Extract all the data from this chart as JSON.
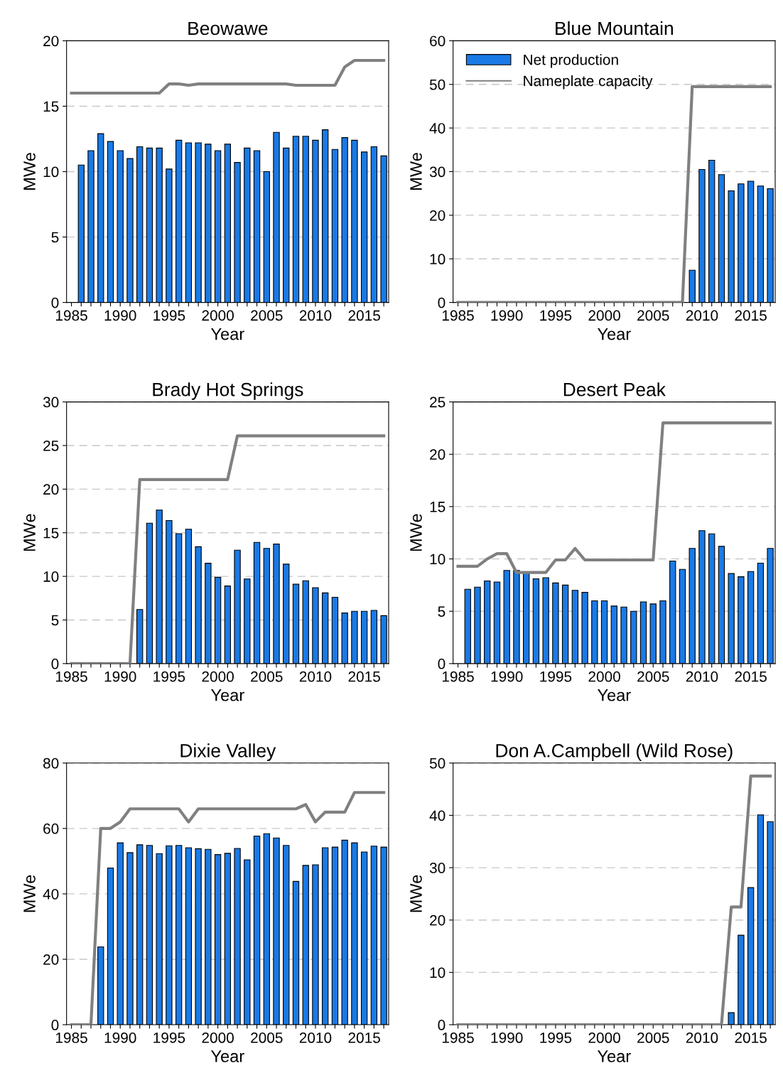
{
  "chart_data": [
    {
      "type": "bar",
      "title": "Beowawe",
      "xlabel": "Year",
      "ylabel": "MWe",
      "xlim": [
        1984.5,
        2017.5
      ],
      "ylim": [
        0,
        20
      ],
      "yticks": [
        0,
        5,
        10,
        15,
        20
      ],
      "grid": "y",
      "xticks": [
        1985,
        {
          "value": 1986,
          "label": null
        },
        {
          "value": 1987,
          "label": null
        },
        {
          "value": 1988,
          "label": null
        },
        {
          "value": 1989,
          "label": null
        },
        1990,
        {
          "value": 1991,
          "label": null
        },
        {
          "value": 1992,
          "label": null
        },
        {
          "value": 1993,
          "label": null
        },
        {
          "value": 1994,
          "label": null
        },
        1995,
        {
          "value": 1996,
          "label": null
        },
        {
          "value": 1997,
          "label": null
        },
        {
          "value": 1998,
          "label": null
        },
        {
          "value": 1999,
          "label": null
        },
        2000,
        {
          "value": 2001,
          "label": null
        },
        {
          "value": 2002,
          "label": null
        },
        {
          "value": 2003,
          "label": null
        },
        {
          "value": 2004,
          "label": null
        },
        2005,
        {
          "value": 2006,
          "label": null
        },
        {
          "value": 2007,
          "label": null
        },
        {
          "value": 2008,
          "label": null
        },
        {
          "value": 2009,
          "label": null
        },
        2010,
        {
          "value": 2011,
          "label": null
        },
        {
          "value": 2012,
          "label": null
        },
        {
          "value": 2013,
          "label": null
        },
        {
          "value": 2014,
          "label": null
        },
        2015,
        {
          "value": 2016,
          "label": null
        },
        {
          "value": 2017,
          "label": null
        }
      ],
      "series": [
        {
          "color": "#1a7ae6",
          "x": [
            1986,
            1987,
            1988,
            1989,
            1990,
            1991,
            1992,
            1993,
            1994,
            1995,
            1996,
            1997,
            1998,
            1999,
            2000,
            2001,
            2002,
            2003,
            2004,
            2005,
            2006,
            2007,
            2008,
            2009,
            2010,
            2011,
            2012,
            2013,
            2014,
            2015,
            2016,
            2017
          ],
          "values": [
            10.5,
            11.6,
            12.9,
            12.3,
            11.6,
            11.0,
            11.9,
            11.8,
            11.8,
            10.2,
            12.4,
            12.2,
            12.2,
            12.1,
            11.6,
            12.1,
            10.7,
            11.8,
            11.6,
            10.0,
            13.0,
            11.8,
            12.7,
            12.7,
            12.4,
            13.2,
            11.7,
            12.6,
            12.4,
            11.5,
            11.9,
            11.2
          ]
        },
        {
          "type": "line",
          "color": "#808080",
          "x": [
            1985,
            1994,
            1995,
            1996,
            1997,
            1998,
            2007,
            2008,
            2012,
            2013,
            2014,
            2017
          ],
          "values": [
            16.0,
            16.0,
            16.7,
            16.7,
            16.6,
            16.7,
            16.7,
            16.6,
            16.6,
            18.0,
            18.5,
            18.5
          ]
        }
      ]
    },
    {
      "type": "bar",
      "title": "Blue Mountain",
      "xlabel": "Year",
      "ylabel": "MWe",
      "xlim": [
        1984.5,
        2017.5
      ],
      "ylim": [
        0,
        60
      ],
      "yticks": [
        0,
        10,
        20,
        30,
        40,
        50,
        60
      ],
      "grid": "y",
      "legend": "top left",
      "xticks": [
        1985,
        {
          "value": 1986,
          "label": null
        },
        {
          "value": 1987,
          "label": null
        },
        {
          "value": 1988,
          "label": null
        },
        {
          "value": 1989,
          "label": null
        },
        1990,
        {
          "value": 1991,
          "label": null
        },
        {
          "value": 1992,
          "label": null
        },
        {
          "value": 1993,
          "label": null
        },
        {
          "value": 1994,
          "label": null
        },
        1995,
        {
          "value": 1996,
          "label": null
        },
        {
          "value": 1997,
          "label": null
        },
        {
          "value": 1998,
          "label": null
        },
        {
          "value": 1999,
          "label": null
        },
        2000,
        {
          "value": 2001,
          "label": null
        },
        {
          "value": 2002,
          "label": null
        },
        {
          "value": 2003,
          "label": null
        },
        {
          "value": 2004,
          "label": null
        },
        2005,
        {
          "value": 2006,
          "label": null
        },
        {
          "value": 2007,
          "label": null
        },
        {
          "value": 2008,
          "label": null
        },
        {
          "value": 2009,
          "label": null
        },
        2010,
        {
          "value": 2011,
          "label": null
        },
        {
          "value": 2012,
          "label": null
        },
        {
          "value": 2013,
          "label": null
        },
        {
          "value": 2014,
          "label": null
        },
        2015,
        {
          "value": 2016,
          "label": null
        },
        {
          "value": 2017,
          "label": null
        }
      ],
      "series": [
        {
          "name": "Net production",
          "color": "#1a7ae6",
          "x": [
            2009,
            2010,
            2011,
            2012,
            2013,
            2014,
            2015,
            2016,
            2017
          ],
          "values": [
            7.4,
            30.5,
            32.6,
            29.3,
            25.6,
            27.2,
            27.8,
            26.7,
            26.1
          ]
        },
        {
          "name": "Nameplate capacity",
          "type": "line",
          "color": "#808080",
          "x": [
            1985,
            2008,
            2009,
            2017
          ],
          "values": [
            0,
            0,
            49.5,
            49.5
          ]
        }
      ]
    },
    {
      "type": "bar",
      "title": "Brady Hot Springs",
      "xlabel": "Year",
      "ylabel": "MWe",
      "xlim": [
        1984.5,
        2017.5
      ],
      "ylim": [
        0,
        30
      ],
      "yticks": [
        0,
        5,
        10,
        15,
        20,
        25,
        30
      ],
      "grid": "y",
      "xticks": [
        1985,
        {
          "value": 1986,
          "label": null
        },
        {
          "value": 1987,
          "label": null
        },
        {
          "value": 1988,
          "label": null
        },
        {
          "value": 1989,
          "label": null
        },
        1990,
        {
          "value": 1991,
          "label": null
        },
        {
          "value": 1992,
          "label": null
        },
        {
          "value": 1993,
          "label": null
        },
        {
          "value": 1994,
          "label": null
        },
        1995,
        {
          "value": 1996,
          "label": null
        },
        {
          "value": 1997,
          "label": null
        },
        {
          "value": 1998,
          "label": null
        },
        {
          "value": 1999,
          "label": null
        },
        2000,
        {
          "value": 2001,
          "label": null
        },
        {
          "value": 2002,
          "label": null
        },
        {
          "value": 2003,
          "label": null
        },
        {
          "value": 2004,
          "label": null
        },
        2005,
        {
          "value": 2006,
          "label": null
        },
        {
          "value": 2007,
          "label": null
        },
        {
          "value": 2008,
          "label": null
        },
        {
          "value": 2009,
          "label": null
        },
        2010,
        {
          "value": 2011,
          "label": null
        },
        {
          "value": 2012,
          "label": null
        },
        {
          "value": 2013,
          "label": null
        },
        {
          "value": 2014,
          "label": null
        },
        2015,
        {
          "value": 2016,
          "label": null
        },
        {
          "value": 2017,
          "label": null
        }
      ],
      "series": [
        {
          "color": "#1a7ae6",
          "x": [
            1992,
            1993,
            1994,
            1995,
            1996,
            1997,
            1998,
            1999,
            2000,
            2001,
            2002,
            2003,
            2004,
            2005,
            2006,
            2007,
            2008,
            2009,
            2010,
            2011,
            2012,
            2013,
            2014,
            2015,
            2016,
            2017
          ],
          "values": [
            6.2,
            16.1,
            17.6,
            16.4,
            14.9,
            15.4,
            13.4,
            11.5,
            9.9,
            8.9,
            13.0,
            9.7,
            13.9,
            13.2,
            13.7,
            11.4,
            9.1,
            9.5,
            8.7,
            8.1,
            7.6,
            5.8,
            6.0,
            6.0,
            6.1,
            5.5
          ]
        },
        {
          "type": "line",
          "color": "#808080",
          "x": [
            1985,
            1991,
            1992,
            2001,
            2002,
            2017
          ],
          "values": [
            0,
            0,
            21.1,
            21.1,
            26.1,
            26.1
          ]
        }
      ]
    },
    {
      "type": "bar",
      "title": "Desert Peak",
      "xlabel": "Year",
      "ylabel": "MWe",
      "xlim": [
        1984.5,
        2017.5
      ],
      "ylim": [
        0,
        25
      ],
      "yticks": [
        0,
        5,
        10,
        15,
        20,
        25
      ],
      "grid": "y",
      "xticks": [
        1985,
        {
          "value": 1986,
          "label": null
        },
        {
          "value": 1987,
          "label": null
        },
        {
          "value": 1988,
          "label": null
        },
        {
          "value": 1989,
          "label": null
        },
        1990,
        {
          "value": 1991,
          "label": null
        },
        {
          "value": 1992,
          "label": null
        },
        {
          "value": 1993,
          "label": null
        },
        {
          "value": 1994,
          "label": null
        },
        1995,
        {
          "value": 1996,
          "label": null
        },
        {
          "value": 1997,
          "label": null
        },
        {
          "value": 1998,
          "label": null
        },
        {
          "value": 1999,
          "label": null
        },
        2000,
        {
          "value": 2001,
          "label": null
        },
        {
          "value": 2002,
          "label": null
        },
        {
          "value": 2003,
          "label": null
        },
        {
          "value": 2004,
          "label": null
        },
        2005,
        {
          "value": 2006,
          "label": null
        },
        {
          "value": 2007,
          "label": null
        },
        {
          "value": 2008,
          "label": null
        },
        {
          "value": 2009,
          "label": null
        },
        2010,
        {
          "value": 2011,
          "label": null
        },
        {
          "value": 2012,
          "label": null
        },
        {
          "value": 2013,
          "label": null
        },
        {
          "value": 2014,
          "label": null
        },
        2015,
        {
          "value": 2016,
          "label": null
        },
        {
          "value": 2017,
          "label": null
        }
      ],
      "series": [
        {
          "color": "#1a7ae6",
          "x": [
            1986,
            1987,
            1988,
            1989,
            1990,
            1991,
            1992,
            1993,
            1994,
            1995,
            1996,
            1997,
            1998,
            1999,
            2000,
            2001,
            2002,
            2003,
            2004,
            2005,
            2006,
            2007,
            2008,
            2009,
            2010,
            2011,
            2012,
            2013,
            2014,
            2015,
            2016,
            2017
          ],
          "values": [
            7.1,
            7.3,
            7.9,
            7.8,
            8.9,
            8.9,
            8.7,
            8.1,
            8.2,
            7.7,
            7.5,
            7.0,
            6.8,
            6.0,
            6.0,
            5.5,
            5.4,
            5.0,
            5.9,
            5.7,
            6.0,
            9.8,
            9.0,
            11.0,
            12.7,
            12.4,
            11.2,
            8.6,
            8.3,
            8.8,
            9.6,
            11.0
          ]
        },
        {
          "type": "line",
          "color": "#808080",
          "x": [
            1985,
            1987,
            1988,
            1989,
            1990,
            1991,
            1994,
            1995,
            1996,
            1997,
            1998,
            2005,
            2006,
            2017
          ],
          "values": [
            9.3,
            9.3,
            10.0,
            10.5,
            10.5,
            8.7,
            8.7,
            9.9,
            9.9,
            11.0,
            9.9,
            9.9,
            23.0,
            23.0
          ]
        }
      ]
    },
    {
      "type": "bar",
      "title": "Dixie Valley",
      "xlabel": "Year",
      "ylabel": "MWe",
      "xlim": [
        1984.5,
        2017.5
      ],
      "ylim": [
        0,
        80
      ],
      "yticks": [
        0,
        20,
        40,
        60,
        80
      ],
      "grid": "y",
      "xticks": [
        1985,
        {
          "value": 1986,
          "label": null
        },
        {
          "value": 1987,
          "label": null
        },
        {
          "value": 1988,
          "label": null
        },
        {
          "value": 1989,
          "label": null
        },
        1990,
        {
          "value": 1991,
          "label": null
        },
        {
          "value": 1992,
          "label": null
        },
        {
          "value": 1993,
          "label": null
        },
        {
          "value": 1994,
          "label": null
        },
        1995,
        {
          "value": 1996,
          "label": null
        },
        {
          "value": 1997,
          "label": null
        },
        {
          "value": 1998,
          "label": null
        },
        {
          "value": 1999,
          "label": null
        },
        2000,
        {
          "value": 2001,
          "label": null
        },
        {
          "value": 2002,
          "label": null
        },
        {
          "value": 2003,
          "label": null
        },
        {
          "value": 2004,
          "label": null
        },
        2005,
        {
          "value": 2006,
          "label": null
        },
        {
          "value": 2007,
          "label": null
        },
        {
          "value": 2008,
          "label": null
        },
        {
          "value": 2009,
          "label": null
        },
        2010,
        {
          "value": 2011,
          "label": null
        },
        {
          "value": 2012,
          "label": null
        },
        {
          "value": 2013,
          "label": null
        },
        {
          "value": 2014,
          "label": null
        },
        2015,
        {
          "value": 2016,
          "label": null
        },
        {
          "value": 2017,
          "label": null
        }
      ],
      "series": [
        {
          "color": "#1a7ae6",
          "x": [
            1988,
            1989,
            1990,
            1991,
            1992,
            1993,
            1994,
            1995,
            1996,
            1997,
            1998,
            1999,
            2000,
            2001,
            2002,
            2003,
            2004,
            2005,
            2006,
            2007,
            2008,
            2009,
            2010,
            2011,
            2012,
            2013,
            2014,
            2015,
            2016,
            2017
          ],
          "values": [
            23.8,
            47.9,
            55.6,
            52.6,
            55.0,
            54.8,
            52.3,
            54.7,
            54.8,
            54.1,
            53.8,
            53.6,
            52.0,
            52.4,
            53.9,
            50.4,
            57.7,
            58.4,
            57.1,
            54.8,
            43.8,
            48.7,
            48.9,
            54.1,
            54.3,
            56.4,
            55.6,
            52.8,
            54.6,
            54.3
          ]
        },
        {
          "type": "line",
          "color": "#808080",
          "x": [
            1985,
            1987,
            1988,
            1989,
            1990,
            1991,
            1996,
            1997,
            1998,
            2008,
            2009,
            2010,
            2011,
            2013,
            2014,
            2017
          ],
          "values": [
            0,
            0,
            60,
            60,
            62,
            66,
            66,
            62,
            66,
            66,
            67.3,
            62,
            65,
            65,
            71,
            71
          ]
        }
      ]
    },
    {
      "type": "bar",
      "title": "Don A.Campbell (Wild Rose)",
      "xlabel": "Year",
      "ylabel": "MWe",
      "xlim": [
        1984.5,
        2017.5
      ],
      "ylim": [
        0,
        50
      ],
      "yticks": [
        0,
        10,
        20,
        30,
        40,
        50
      ],
      "grid": "y",
      "xticks": [
        1985,
        {
          "value": 1986,
          "label": null
        },
        {
          "value": 1987,
          "label": null
        },
        {
          "value": 1988,
          "label": null
        },
        {
          "value": 1989,
          "label": null
        },
        1990,
        {
          "value": 1991,
          "label": null
        },
        {
          "value": 1992,
          "label": null
        },
        {
          "value": 1993,
          "label": null
        },
        {
          "value": 1994,
          "label": null
        },
        1995,
        {
          "value": 1996,
          "label": null
        },
        {
          "value": 1997,
          "label": null
        },
        {
          "value": 1998,
          "label": null
        },
        {
          "value": 1999,
          "label": null
        },
        2000,
        {
          "value": 2001,
          "label": null
        },
        {
          "value": 2002,
          "label": null
        },
        {
          "value": 2003,
          "label": null
        },
        {
          "value": 2004,
          "label": null
        },
        2005,
        {
          "value": 2006,
          "label": null
        },
        {
          "value": 2007,
          "label": null
        },
        {
          "value": 2008,
          "label": null
        },
        {
          "value": 2009,
          "label": null
        },
        2010,
        {
          "value": 2011,
          "label": null
        },
        {
          "value": 2012,
          "label": null
        },
        {
          "value": 2013,
          "label": null
        },
        {
          "value": 2014,
          "label": null
        },
        2015,
        {
          "value": 2016,
          "label": null
        },
        {
          "value": 2017,
          "label": null
        }
      ],
      "series": [
        {
          "color": "#1a7ae6",
          "x": [
            2013,
            2014,
            2015,
            2016,
            2017
          ],
          "values": [
            2.3,
            17.1,
            26.2,
            40.1,
            38.8
          ]
        },
        {
          "type": "line",
          "color": "#808080",
          "x": [
            1985,
            2012,
            2013,
            2014,
            2015,
            2017
          ],
          "values": [
            0,
            0,
            22.5,
            22.5,
            47.5,
            47.5
          ]
        }
      ]
    }
  ]
}
